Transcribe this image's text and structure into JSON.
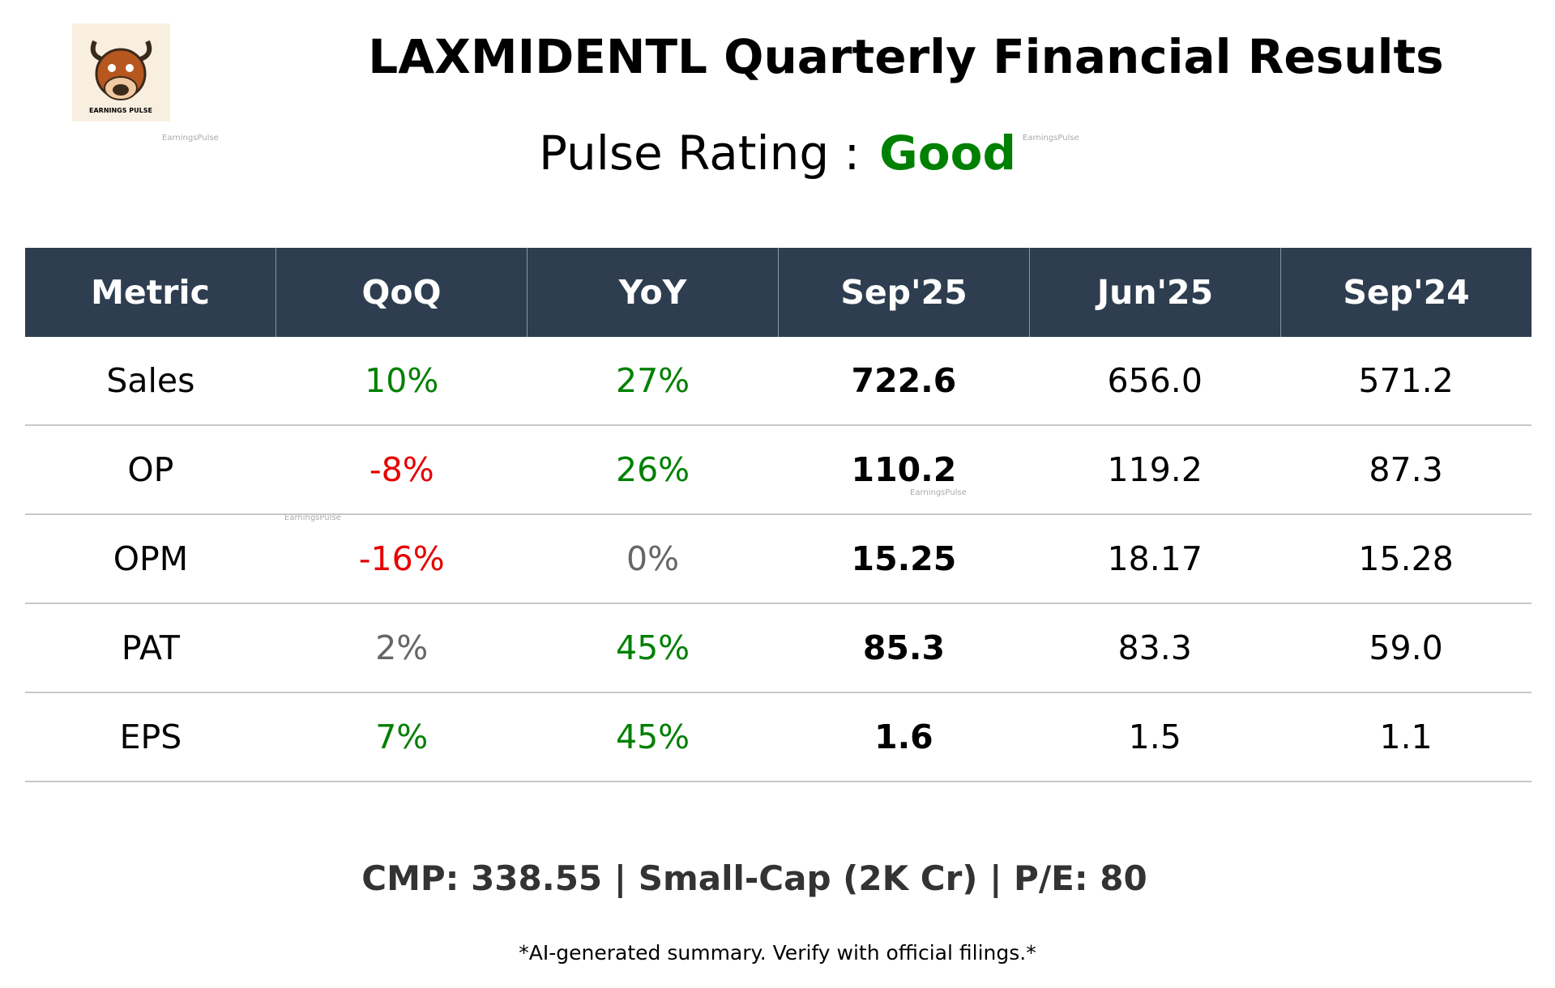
{
  "header": {
    "title": "LAXMIDENTL Quarterly Financial Results",
    "rating_label": "Pulse Rating :",
    "rating": "Good",
    "rating_color": "#008000",
    "logo_text": "EARNINGS PULSE",
    "watermark": "EarningsPulse"
  },
  "table": {
    "columns": [
      "Metric",
      "QoQ",
      "YoY",
      "Sep'25",
      "Jun'25",
      "Sep'24"
    ],
    "rows": [
      [
        "Sales",
        "10%",
        "27%",
        "722.6",
        "656.0",
        "571.2"
      ],
      [
        "OP",
        "-8%",
        "26%",
        "110.2",
        "119.2",
        "87.3"
      ],
      [
        "OPM",
        "-16%",
        "0%",
        "15.25",
        "18.17",
        "15.28"
      ],
      [
        "PAT",
        "2%",
        "45%",
        "85.3",
        "83.3",
        "59.0"
      ],
      [
        "EPS",
        "7%",
        "45%",
        "1.6",
        "1.5",
        "1.1"
      ]
    ],
    "cell_colors": [
      [
        "#000000",
        "#008000",
        "#008000",
        "#000000",
        "#000000",
        "#000000"
      ],
      [
        "#000000",
        "#e60000",
        "#008000",
        "#000000",
        "#000000",
        "#000000"
      ],
      [
        "#000000",
        "#e60000",
        "#666666",
        "#000000",
        "#000000",
        "#000000"
      ],
      [
        "#000000",
        "#666666",
        "#008000",
        "#000000",
        "#000000",
        "#000000"
      ],
      [
        "#000000",
        "#008000",
        "#008000",
        "#000000",
        "#000000",
        "#000000"
      ]
    ],
    "bold_column": 3
  },
  "footer": {
    "market": "CMP: 338.55 | Small-Cap (2K Cr) | P/E: 80",
    "disclaimer": "*AI-generated summary. Verify with official filings.*"
  }
}
